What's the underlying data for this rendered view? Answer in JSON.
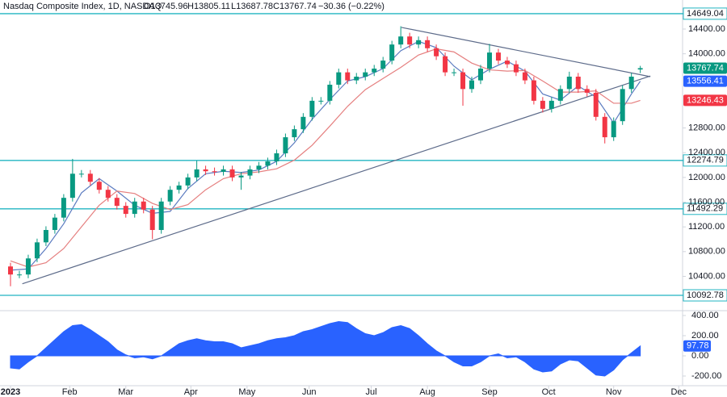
{
  "chart_data": {
    "type": "candlestick",
    "title": "Nasdaq Composite Index, 1D, NASDAQ",
    "ohlc_text": [
      "O13745.96",
      "H13805.11",
      "L13687.78",
      "C13767.74",
      "−30.36 (−0.22%)"
    ],
    "x": [
      0,
      3,
      6,
      9,
      12,
      15,
      18,
      21,
      24,
      27,
      30,
      33,
      36,
      39,
      42,
      45,
      48,
      51,
      54,
      57,
      60,
      63,
      66,
      69,
      72,
      75,
      78,
      81,
      84,
      87,
      90,
      93,
      96,
      99,
      102,
      105,
      108,
      111,
      114,
      117,
      120,
      123,
      126,
      129,
      132,
      135,
      138,
      141,
      144,
      147,
      150,
      153,
      156,
      159,
      162,
      165,
      168,
      171,
      174,
      177,
      180,
      183,
      186,
      189,
      192,
      195,
      198,
      201,
      204,
      207,
      210,
      213
    ],
    "open": [
      10560,
      10430,
      10430,
      10690,
      10950,
      11150,
      11350,
      11670,
      12060,
      12060,
      11930,
      11800,
      11670,
      11540,
      11410,
      11610,
      11480,
      11150,
      11610,
      11800,
      11870,
      12000,
      12130,
      12100,
      12090,
      12130,
      12000,
      12030,
      12130,
      12190,
      12260,
      12390,
      12650,
      12780,
      12980,
      13240,
      13240,
      13500,
      13700,
      13570,
      13630,
      13700,
      13760,
      13890,
      14150,
      14280,
      14150,
      14220,
      14090,
      13960,
      13700,
      13700,
      13430,
      13570,
      13760,
      14020,
      13890,
      13830,
      13700,
      13570,
      13240,
      13110,
      13240,
      13430,
      13630,
      13430,
      13370,
      12980,
      12650,
      12910,
      13430,
      13745.96
    ],
    "high": [
      10620,
      10490,
      10750,
      11010,
      11210,
      11410,
      11730,
      12300,
      12120,
      12120,
      11990,
      11860,
      11730,
      11600,
      11670,
      11670,
      11540,
      11670,
      11860,
      11930,
      12060,
      12270,
      12190,
      12160,
      12190,
      12190,
      12090,
      12190,
      12250,
      12320,
      12450,
      12710,
      12840,
      13040,
      13300,
      13300,
      13560,
      13760,
      13760,
      13690,
      13760,
      13820,
      13950,
      14210,
      14446,
      14340,
      14280,
      14280,
      14150,
      14020,
      13760,
      13760,
      13630,
      13820,
      14160,
      14080,
      13950,
      13890,
      13760,
      13630,
      13300,
      13300,
      13490,
      13710,
      13690,
      13490,
      13430,
      13040,
      12970,
      13490,
      13690,
      13805.11
    ],
    "low": [
      10240,
      10370,
      10370,
      10630,
      10890,
      11090,
      11290,
      11610,
      12000,
      11870,
      11740,
      11610,
      11480,
      11350,
      11350,
      11420,
      11000,
      11090,
      11550,
      11740,
      11810,
      11940,
      12040,
      12030,
      12030,
      11940,
      11800,
      11970,
      12070,
      12130,
      12200,
      12330,
      12590,
      12720,
      12920,
      13180,
      13180,
      13440,
      13510,
      13510,
      13570,
      13640,
      13700,
      13830,
      14090,
      14090,
      14090,
      14030,
      13900,
      13640,
      13640,
      13160,
      13370,
      13510,
      13700,
      13830,
      13770,
      13640,
      13510,
      13180,
      13050,
      13050,
      13180,
      13370,
      13370,
      13310,
      12920,
      12550,
      12590,
      12850,
      13370,
      13687.78
    ],
    "close": [
      10430,
      10430,
      10690,
      10950,
      11150,
      11350,
      11670,
      12060,
      12060,
      11930,
      11800,
      11670,
      11540,
      11410,
      11610,
      11480,
      11150,
      11610,
      11800,
      11870,
      12000,
      12130,
      12100,
      12090,
      12130,
      12000,
      12030,
      12130,
      12190,
      12260,
      12390,
      12650,
      12780,
      12980,
      13240,
      13240,
      13500,
      13700,
      13570,
      13630,
      13700,
      13760,
      13890,
      14150,
      14280,
      14150,
      14220,
      14090,
      13960,
      13700,
      13700,
      13430,
      13570,
      13760,
      14020,
      13890,
      13830,
      13700,
      13570,
      13240,
      13110,
      13240,
      13430,
      13630,
      13430,
      13370,
      12980,
      12650,
      12910,
      13430,
      13630,
      13767.74
    ],
    "up_color": "#089981",
    "down_color": "#f23645",
    "xlim": [
      -3.55,
      227.3
    ],
    "xticks": [
      {
        "value": 0,
        "label": "2023"
      },
      {
        "value": 20,
        "label": "Feb"
      },
      {
        "value": 39,
        "label": "Mar"
      },
      {
        "value": 61,
        "label": "Apr"
      },
      {
        "value": 80,
        "label": "May"
      },
      {
        "value": 101,
        "label": "Jun"
      },
      {
        "value": 122,
        "label": "Jul"
      },
      {
        "value": 141,
        "label": "Aug"
      },
      {
        "value": 162,
        "label": "Sep"
      },
      {
        "value": 182,
        "label": "Oct"
      },
      {
        "value": 204,
        "label": "Nov"
      },
      {
        "value": 226,
        "label": "Dec"
      }
    ],
    "ylim": [
      9845,
      14870
    ],
    "yticks": [
      {
        "value": 10400,
        "label": "10400.00"
      },
      {
        "value": 10800,
        "label": "10800.00"
      },
      {
        "value": 11200,
        "label": "11200.00"
      },
      {
        "value": 11600,
        "label": "11600.00"
      },
      {
        "value": 12000,
        "label": "12000.00"
      },
      {
        "value": 12400,
        "label": "12400.00"
      },
      {
        "value": 12800,
        "label": "12800.00"
      },
      {
        "value": 14000,
        "label": "14000.00"
      },
      {
        "value": 14400,
        "label": "14400.00"
      }
    ],
    "grid": false,
    "moving_averages": [
      {
        "color": "#5b7bc0",
        "x": [
          0,
          6,
          12,
          18,
          24,
          30,
          36,
          42,
          48,
          54,
          60,
          66,
          72,
          78,
          84,
          90,
          96,
          102,
          108,
          114,
          120,
          126,
          132,
          138,
          144,
          150,
          156,
          162,
          168,
          174,
          180,
          186,
          192,
          198,
          204,
          210,
          213
        ],
        "values": [
          10500,
          10520,
          10850,
          11250,
          11750,
          11980,
          11780,
          11550,
          11420,
          11450,
          11820,
          12060,
          12100,
          12080,
          12120,
          12260,
          12560,
          12940,
          13260,
          13560,
          13630,
          13760,
          14050,
          14200,
          14100,
          13800,
          13580,
          13750,
          13880,
          13720,
          13350,
          13250,
          13480,
          13300,
          12880,
          13350,
          13556.41
        ]
      },
      {
        "color": "#e57f7f",
        "x": [
          0,
          6,
          12,
          18,
          24,
          30,
          36,
          42,
          48,
          54,
          60,
          66,
          72,
          78,
          84,
          90,
          96,
          102,
          108,
          114,
          120,
          126,
          132,
          138,
          144,
          150,
          156,
          162,
          168,
          174,
          180,
          186,
          192,
          198,
          204,
          210,
          213
        ],
        "values": [
          10650,
          10550,
          10620,
          10850,
          11200,
          11550,
          11780,
          11740,
          11580,
          11480,
          11560,
          11800,
          11980,
          12060,
          12090,
          12140,
          12280,
          12520,
          12830,
          13150,
          13420,
          13600,
          13780,
          13980,
          14080,
          14030,
          13850,
          13740,
          13720,
          13730,
          13560,
          13380,
          13380,
          13400,
          13200,
          13200,
          13246.43
        ]
      }
    ],
    "badge_colors": [
      "#089981",
      "#2962ff",
      "#f23645"
    ],
    "trendlines": [
      {
        "color": "#5d6b8a",
        "x": [
          4,
          216.4
        ],
        "values": [
          10280,
          13640
        ]
      },
      {
        "color": "#5d6b8a",
        "x": [
          132.2,
          216.4
        ],
        "values": [
          14427,
          13630
        ]
      }
    ],
    "levels": [
      14649.04,
      12274.79,
      11492.29,
      10092.78
    ],
    "level_color": "#22b5c2",
    "oscillator": {
      "type": "area",
      "color": "#2962ff",
      "values": [
        -120,
        -130,
        -60,
        0,
        80,
        160,
        240,
        300,
        310,
        260,
        200,
        140,
        60,
        10,
        -20,
        -10,
        -30,
        0,
        60,
        120,
        150,
        170,
        150,
        140,
        140,
        120,
        80,
        100,
        120,
        150,
        170,
        180,
        200,
        240,
        260,
        290,
        320,
        340,
        330,
        270,
        220,
        200,
        230,
        280,
        300,
        270,
        200,
        120,
        50,
        0,
        -60,
        -100,
        -100,
        -60,
        0,
        20,
        -20,
        -10,
        -60,
        -130,
        -160,
        -150,
        -80,
        -40,
        -50,
        -120,
        -190,
        -200,
        -140,
        -40,
        30,
        97.78
      ],
      "ylim": [
        -296,
        448
      ],
      "yticks": [
        {
          "value": 400,
          "label": "400.00"
        },
        {
          "value": 200,
          "label": "200.00"
        },
        {
          "value": 0,
          "label": "0.00"
        },
        {
          "value": -200,
          "label": "-200.00"
        }
      ]
    }
  }
}
